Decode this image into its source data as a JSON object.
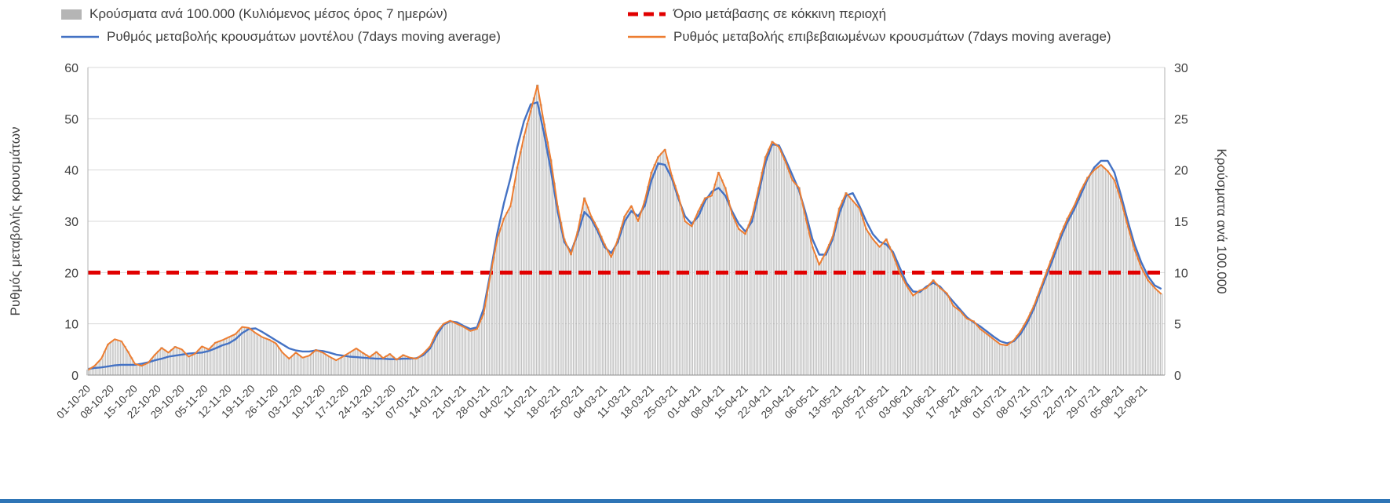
{
  "legend": {
    "bars": "Κρούσματα ανά 100.000 (Κυλιόμενος μέσος όρος 7 ημερών)",
    "threshold": "Όριο μετάβασης σε κόκκινη περιοχή",
    "model": "Ρυθμός μεταβολής κρουσμάτων μοντέλου (7days moving average)",
    "confirmed": "Ρυθμός μεταβολής επιβεβαιωμένων κρουσμάτων (7days moving average)"
  },
  "axes": {
    "left_title": "Ρυθμός μεταβολής κρουσμάτων",
    "right_title": "Κρούσματα ανά 100.000",
    "left_ticks": [
      0,
      10,
      20,
      30,
      40,
      50,
      60
    ],
    "right_ticks": [
      0,
      5,
      10,
      15,
      20,
      25,
      30
    ]
  },
  "colors": {
    "model": "#4472c4",
    "confirmed": "#ed7d31",
    "threshold": "#e10000",
    "bar_fill": "#ededed",
    "bar_stroke": "#a3a3a3",
    "grid": "#d9d9d9",
    "axis": "#b0b0b0",
    "text": "#404040"
  },
  "chart_data": {
    "type": "line",
    "title": "",
    "x_tick_labels": [
      "01-10-20",
      "08-10-20",
      "15-10-20",
      "22-10-20",
      "29-10-20",
      "05-11-20",
      "12-11-20",
      "19-11-20",
      "26-11-20",
      "03-12-20",
      "10-12-20",
      "17-12-20",
      "24-12-20",
      "31-12-20",
      "07-01-21",
      "14-01-21",
      "21-01-21",
      "28-01-21",
      "04-02-21",
      "11-02-21",
      "18-02-21",
      "25-02-21",
      "04-03-21",
      "11-03-21",
      "18-03-21",
      "25-03-21",
      "01-04-21",
      "08-04-21",
      "15-04-21",
      "22-04-21",
      "29-04-21",
      "06-05-21",
      "13-05-21",
      "20-05-21",
      "27-05-21",
      "03-06-21",
      "10-06-21",
      "17-06-21",
      "24-06-21",
      "01-07-21",
      "08-07-21",
      "15-07-21",
      "22-07-21",
      "29-07-21",
      "05-08-21",
      "12-08-21"
    ],
    "x_tick_interval_days": 7,
    "x_step_days": 2,
    "x_max_day": 320,
    "left_range": [
      0,
      60
    ],
    "right_range": [
      0,
      30
    ],
    "legend_position": "top",
    "grid": "horizontal",
    "series": [
      {
        "name": "Κρούσματα ανά 100.000 (Κυλιόμενος μέσος όρος 7 ημερών)",
        "kind": "bar",
        "axis": "right",
        "values": [
          0.5,
          0.9,
          1.6,
          3.0,
          3.5,
          3.3,
          2.3,
          1.1,
          0.9,
          1.2,
          2.0,
          2.7,
          2.2,
          2.8,
          2.5,
          1.8,
          2.1,
          2.8,
          2.5,
          3.2,
          3.4,
          3.7,
          4.0,
          4.7,
          4.6,
          4.1,
          3.7,
          3.5,
          3.1,
          2.2,
          1.6,
          2.2,
          1.7,
          1.9,
          2.5,
          2.2,
          1.8,
          1.5,
          1.8,
          2.2,
          2.6,
          2.2,
          1.8,
          2.3,
          1.7,
          2.1,
          1.5,
          2.0,
          1.7,
          1.6,
          2.1,
          2.8,
          4.2,
          5.0,
          5.3,
          5.0,
          4.7,
          4.3,
          4.5,
          6.0,
          9.8,
          13.3,
          15.3,
          16.5,
          20.3,
          23.3,
          25.8,
          28.3,
          24.5,
          21.0,
          16.5,
          13.3,
          11.8,
          14.0,
          17.3,
          15.5,
          14.3,
          12.8,
          11.5,
          13.3,
          15.5,
          16.5,
          15.0,
          17.0,
          19.8,
          21.3,
          22.0,
          19.5,
          17.5,
          15.0,
          14.5,
          16.0,
          17.3,
          17.5,
          19.8,
          18.3,
          15.8,
          14.3,
          13.8,
          15.5,
          18.3,
          21.3,
          22.8,
          22.3,
          20.8,
          19.0,
          18.3,
          15.3,
          12.5,
          10.8,
          12.0,
          13.5,
          16.3,
          17.8,
          17.0,
          16.3,
          14.3,
          13.3,
          12.5,
          13.3,
          11.8,
          10.0,
          8.8,
          7.8,
          8.3,
          8.5,
          9.3,
          8.5,
          8.0,
          6.8,
          6.3,
          5.5,
          5.3,
          4.5,
          4.0,
          3.5,
          3.0,
          2.9,
          3.4,
          4.3,
          5.4,
          6.8,
          8.5,
          10.3,
          12.0,
          13.8,
          15.3,
          16.5,
          18.0,
          19.3,
          20.0,
          20.5,
          19.9,
          19.0,
          17.0,
          14.5,
          12.3,
          10.5,
          9.3,
          8.5,
          7.9
        ]
      },
      {
        "name": "Όριο μετάβασης σε κόκκινη περιοχή",
        "kind": "threshold",
        "axis": "left",
        "value": 20
      },
      {
        "name": "Ρυθμός μεταβολής κρουσμάτων μοντέλου (7days moving average)",
        "kind": "line",
        "axis": "left",
        "values": [
          1.2,
          1.4,
          1.5,
          1.7,
          1.9,
          2.0,
          2.0,
          2.0,
          2.2,
          2.5,
          2.9,
          3.2,
          3.6,
          3.8,
          4.0,
          4.2,
          4.3,
          4.4,
          4.7,
          5.2,
          5.8,
          6.2,
          7.0,
          8.2,
          9.0,
          9.1,
          8.4,
          7.6,
          6.8,
          6.0,
          5.2,
          4.8,
          4.6,
          4.6,
          4.8,
          4.7,
          4.4,
          4.0,
          3.8,
          3.6,
          3.5,
          3.4,
          3.3,
          3.2,
          3.2,
          3.1,
          3.1,
          3.2,
          3.2,
          3.3,
          3.9,
          5.2,
          7.8,
          9.8,
          10.5,
          10.3,
          9.6,
          9.0,
          9.3,
          13.0,
          20.0,
          27.5,
          33.5,
          38.5,
          44.5,
          49.5,
          52.8,
          53.2,
          47.0,
          40.0,
          32.0,
          26.0,
          24.0,
          27.5,
          31.8,
          30.5,
          28.0,
          25.0,
          23.8,
          26.0,
          30.0,
          32.0,
          31.0,
          33.0,
          38.0,
          41.3,
          41.0,
          38.5,
          34.5,
          31.0,
          29.5,
          31.0,
          34.0,
          35.8,
          36.5,
          35.0,
          32.0,
          29.5,
          28.0,
          30.0,
          35.5,
          41.5,
          45.0,
          44.8,
          42.0,
          39.0,
          36.0,
          31.5,
          26.5,
          23.5,
          23.5,
          26.5,
          31.5,
          35.0,
          35.5,
          33.0,
          30.0,
          27.5,
          26.0,
          25.5,
          24.0,
          21.0,
          18.0,
          16.3,
          16.2,
          17.3,
          18.0,
          17.3,
          15.8,
          14.3,
          12.8,
          11.3,
          10.3,
          9.5,
          8.5,
          7.5,
          6.6,
          6.2,
          6.6,
          8.0,
          10.2,
          13.0,
          16.5,
          19.8,
          23.2,
          26.8,
          29.8,
          32.3,
          35.2,
          38.2,
          40.5,
          41.8,
          41.8,
          39.5,
          35.0,
          30.0,
          25.5,
          22.0,
          19.3,
          17.5,
          16.8
        ]
      },
      {
        "name": "Ρυθμός μεταβολής επιβεβαιωμένων κρουσμάτων (7days moving average)",
        "kind": "line",
        "axis": "left",
        "values": [
          1.0,
          1.8,
          3.2,
          6.0,
          7.0,
          6.6,
          4.5,
          2.2,
          1.8,
          2.4,
          4.0,
          5.3,
          4.4,
          5.5,
          5.0,
          3.6,
          4.2,
          5.6,
          5.0,
          6.3,
          6.8,
          7.4,
          8.0,
          9.4,
          9.2,
          8.2,
          7.4,
          6.9,
          6.2,
          4.4,
          3.2,
          4.4,
          3.4,
          3.8,
          4.9,
          4.4,
          3.6,
          2.9,
          3.6,
          4.4,
          5.2,
          4.3,
          3.5,
          4.5,
          3.3,
          4.1,
          3.0,
          3.9,
          3.4,
          3.2,
          4.2,
          5.6,
          8.4,
          10.0,
          10.6,
          10.0,
          9.4,
          8.6,
          9.0,
          12.0,
          19.5,
          26.5,
          30.5,
          33.0,
          40.5,
          46.5,
          51.5,
          56.5,
          49.0,
          42.0,
          33.0,
          26.5,
          23.5,
          28.0,
          34.5,
          31.0,
          28.5,
          25.5,
          23.0,
          26.5,
          31.0,
          33.0,
          30.0,
          34.0,
          39.5,
          42.5,
          44.0,
          39.0,
          35.0,
          30.0,
          29.0,
          32.0,
          34.5,
          35.0,
          39.5,
          36.5,
          31.5,
          28.5,
          27.5,
          31.0,
          36.5,
          42.5,
          45.5,
          44.5,
          41.5,
          38.0,
          36.5,
          30.5,
          25.0,
          21.5,
          24.0,
          27.0,
          32.5,
          35.5,
          34.0,
          32.5,
          28.5,
          26.5,
          25.0,
          26.5,
          23.5,
          20.0,
          17.5,
          15.5,
          16.5,
          17.0,
          18.5,
          17.0,
          16.0,
          13.5,
          12.5,
          11.0,
          10.5,
          9.0,
          8.0,
          7.0,
          6.0,
          5.8,
          6.8,
          8.5,
          10.8,
          13.5,
          17.0,
          20.5,
          24.0,
          27.5,
          30.5,
          33.0,
          36.0,
          38.5,
          40.0,
          41.0,
          39.8,
          38.0,
          34.0,
          29.0,
          24.5,
          21.0,
          18.5,
          17.0,
          15.8
        ]
      }
    ]
  }
}
